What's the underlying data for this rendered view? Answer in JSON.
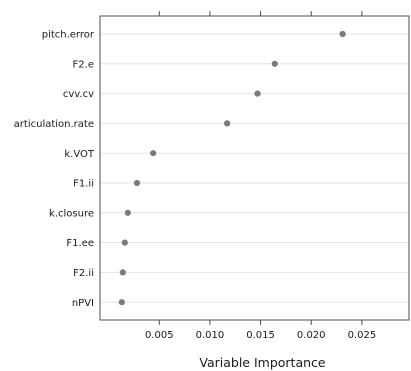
{
  "chart_data": {
    "type": "scatter",
    "title": "",
    "xlabel": "Variable Importance",
    "ylabel": "",
    "xlim": [
      -0.00085,
      0.02965
    ],
    "grid": true,
    "categories": [
      "pitch.error",
      "F2.e",
      "cvv.cv",
      "articulation.rate",
      "k.VOT",
      "F1.ii",
      "k.closure",
      "F1.ee",
      "F2.ii",
      "nPVI"
    ],
    "values": [
      0.0231,
      0.0164,
      0.0147,
      0.0117,
      0.0044,
      0.0028,
      0.0019,
      0.0016,
      0.0014,
      0.0013
    ],
    "x_ticks": [
      "0.005",
      "0.010",
      "0.015",
      "0.020",
      "0.025"
    ],
    "x_tick_values": [
      0.005,
      0.01,
      0.015,
      0.02,
      0.025
    ],
    "point_color": "#7a7a7a",
    "grid_color": "#e6e6e6",
    "axis_color": "#4d4d4d"
  }
}
